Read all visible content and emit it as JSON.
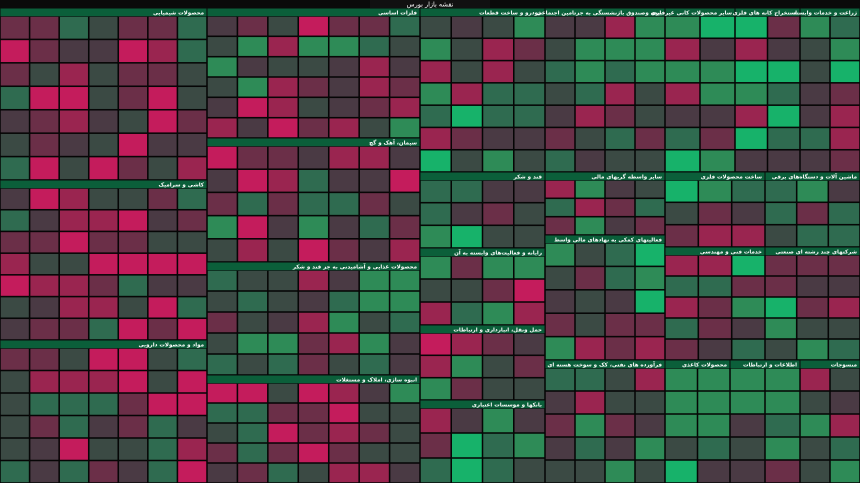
{
  "header": {
    "title": "نقشه بازار بورس"
  },
  "sectors": [
    {
      "name": "محصولات شیمیایی"
    },
    {
      "name": "کاشی و سرامیک"
    },
    {
      "name": "مواد و محصولات دارویی"
    },
    {
      "name": "فلزات اساسی"
    },
    {
      "name": "سیمان، آهک و گچ"
    },
    {
      "name": "محصولات غذایی و آشامیدنی به جز قند و شکر"
    },
    {
      "name": "انبوه سازی، املاک و مستغلات"
    },
    {
      "name": "خودرو و ساخت قطعات"
    },
    {
      "name": "قند و شکر"
    },
    {
      "name": "رایانه و فعالیت‌های وابسته به آن"
    },
    {
      "name": "حمل ونقل، انبارداری و ارتباطات"
    },
    {
      "name": "بانکها و موسسات اعتباری"
    },
    {
      "name": "بیمه وصندوق بازنشستگی به جزتامین اجتماعی"
    },
    {
      "name": "سایر واسطه گریهای مالی"
    },
    {
      "name": "فعالیتهای کمکی به نهادهای مالی واسط"
    },
    {
      "name": "فرآورده های نفتی، کک و سوخت هسته ای"
    },
    {
      "name": "سایر محصولات کانی غیرفلزی"
    },
    {
      "name": "استخراج کانه های فلزی"
    },
    {
      "name": "زراعت و خدمات وابسته"
    },
    {
      "name": "ساخت محصولات فلزی"
    },
    {
      "name": "ماشین آلات و دستگاه‌های برقی"
    },
    {
      "name": "خدمات فنی و مهندسی"
    },
    {
      "name": "شرکتهای چند رشته ای صنعتی"
    },
    {
      "name": "محصولات کاغذی"
    },
    {
      "name": "اطلاعات و ارتباطات"
    },
    {
      "name": "منسوجات"
    }
  ]
}
